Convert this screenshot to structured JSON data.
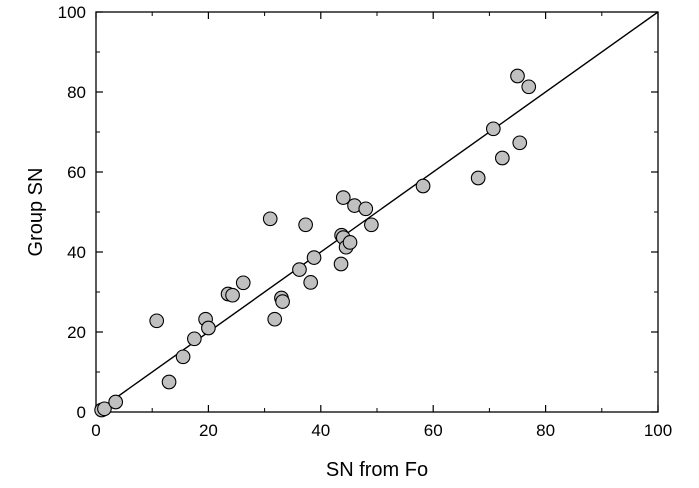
{
  "chart_data": {
    "type": "scatter",
    "xlabel": "SN from Fo",
    "ylabel": "Group SN",
    "xlim": [
      0,
      100
    ],
    "ylim": [
      0,
      100
    ],
    "x_ticks": [
      "0",
      "20",
      "40",
      "60",
      "80",
      "100"
    ],
    "y_ticks": [
      "0",
      "20",
      "40",
      "60",
      "80",
      "100"
    ],
    "grid": false,
    "marker_color": "#c0c0c0",
    "marker_edge_color": "#000000",
    "reference_line": {
      "from": [
        0,
        0
      ],
      "to": [
        100,
        100
      ],
      "color": "#000000"
    },
    "series": [
      {
        "points": [
          [
            1,
            0.5
          ],
          [
            1.5,
            0.8
          ],
          [
            3.5,
            2.5
          ],
          [
            10.8,
            22.8
          ],
          [
            13,
            7.5
          ],
          [
            15.5,
            13.8
          ],
          [
            17.5,
            18.3
          ],
          [
            19.5,
            23.2
          ],
          [
            20,
            21
          ],
          [
            23.5,
            29.5
          ],
          [
            24.3,
            29.2
          ],
          [
            26.2,
            32.3
          ],
          [
            31,
            48.3
          ],
          [
            31.8,
            23.2
          ],
          [
            33,
            28.5
          ],
          [
            33.2,
            27.6
          ],
          [
            36.2,
            35.6
          ],
          [
            37.3,
            46.8
          ],
          [
            38.2,
            32.4
          ],
          [
            38.8,
            38.6
          ],
          [
            43.6,
            37
          ],
          [
            43.7,
            44.2
          ],
          [
            44,
            43.6
          ],
          [
            44,
            53.6
          ],
          [
            44.5,
            41.2
          ],
          [
            45.2,
            42.4
          ],
          [
            46,
            51.6
          ],
          [
            48,
            50.8
          ],
          [
            49,
            46.8
          ],
          [
            58.2,
            56.5
          ],
          [
            68,
            58.5
          ],
          [
            70.7,
            70.8
          ],
          [
            72.3,
            63.5
          ],
          [
            75,
            84
          ],
          [
            75.4,
            67.3
          ],
          [
            77,
            81.3
          ]
        ]
      }
    ]
  }
}
